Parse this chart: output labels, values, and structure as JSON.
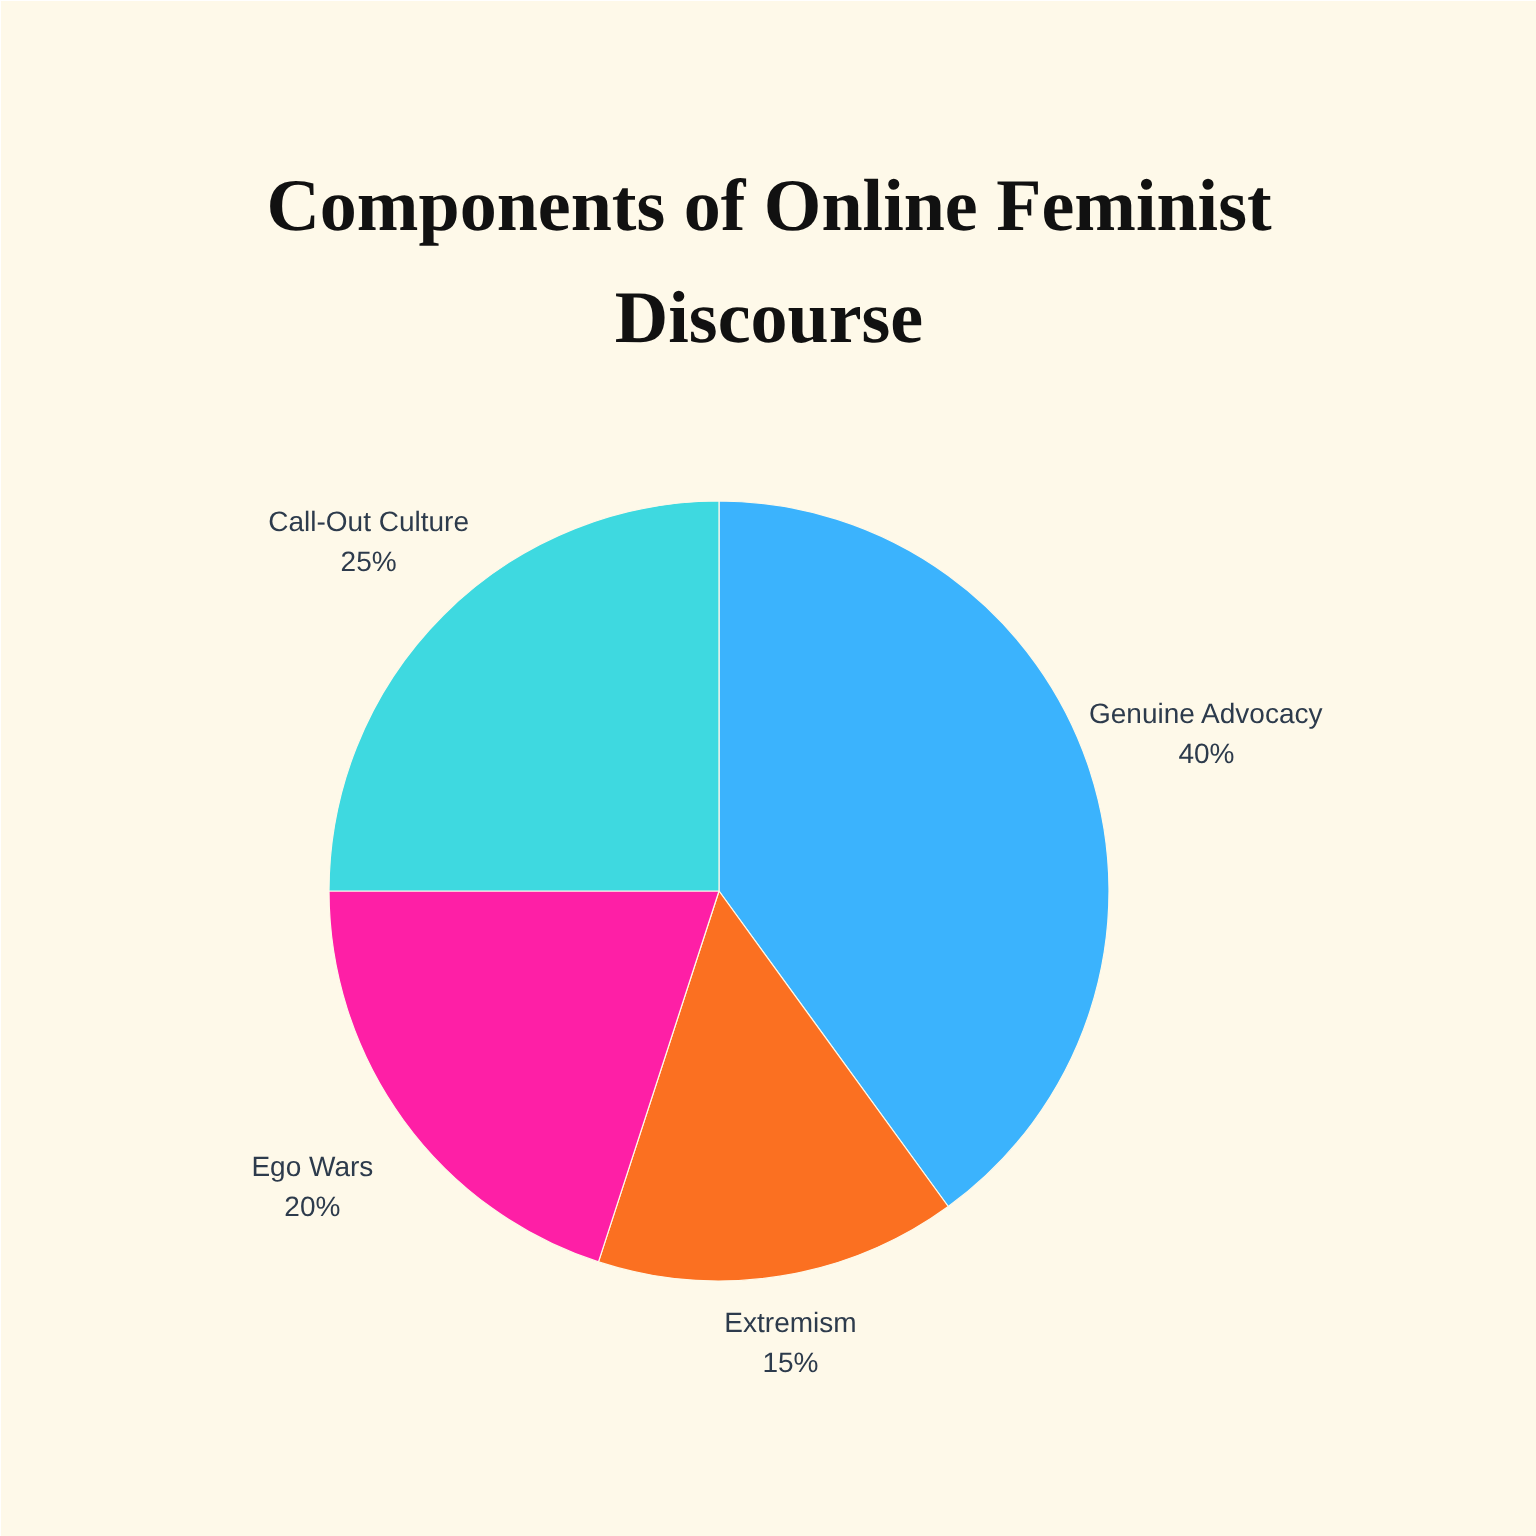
{
  "chart_data": {
    "type": "pie",
    "title": "Components of Online Feminist Discourse",
    "categories": [
      "Genuine Advocacy",
      "Extremism",
      "Ego Wars",
      "Call-Out Culture"
    ],
    "values": [
      40,
      15,
      20,
      25
    ],
    "colors": [
      "#3bb3fd",
      "#fb7021",
      "#fe1fa6",
      "#3ed9e0"
    ],
    "value_labels": [
      "40%",
      "15%",
      "20%",
      "25%"
    ]
  }
}
